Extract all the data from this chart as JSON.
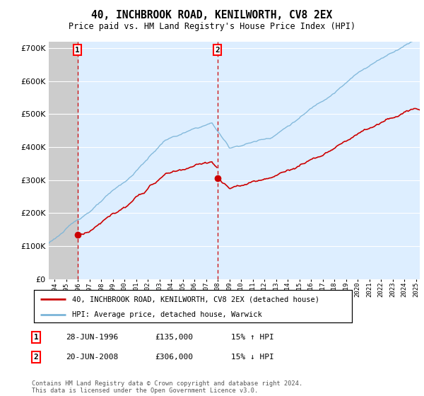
{
  "title": "40, INCHBROOK ROAD, KENILWORTH, CV8 2EX",
  "subtitle": "Price paid vs. HM Land Registry's House Price Index (HPI)",
  "sale1_price": 135000,
  "sale1_label": "28-JUN-1996",
  "sale1_pct": "15% ↑ HPI",
  "sale2_price": 306000,
  "sale2_label": "20-JUN-2008",
  "sale2_pct": "15% ↓ HPI",
  "legend_line1": "40, INCHBROOK ROAD, KENILWORTH, CV8 2EX (detached house)",
  "legend_line2": "HPI: Average price, detached house, Warwick",
  "footnote": "Contains HM Land Registry data © Crown copyright and database right 2024.\nThis data is licensed under the Open Government Licence v3.0.",
  "table_row1": [
    "1",
    "28-JUN-1996",
    "£135,000",
    "15% ↑ HPI"
  ],
  "table_row2": [
    "2",
    "20-JUN-2008",
    "£306,000",
    "15% ↓ HPI"
  ],
  "hpi_color": "#7ab4d8",
  "price_color": "#cc0000",
  "dashed_color": "#cc0000",
  "marker_color": "#cc0000",
  "background_plot": "#ddeeff",
  "ylim": [
    0,
    720000
  ],
  "yticks": [
    0,
    100000,
    200000,
    300000,
    400000,
    500000,
    600000,
    700000
  ],
  "sale1_t": 1996.46,
  "sale2_t": 2008.46,
  "xlim_start": 1994.0,
  "xlim_end": 2025.83
}
